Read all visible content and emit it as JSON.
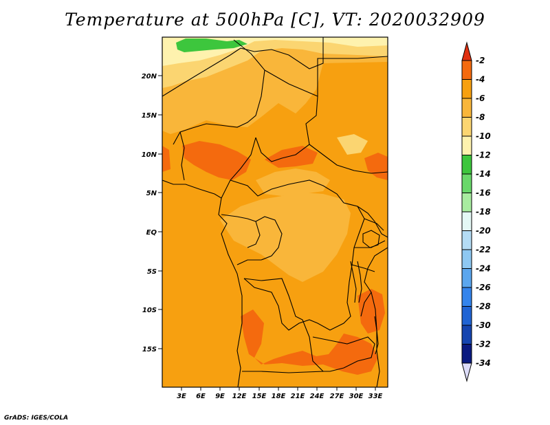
{
  "title": "Temperature at 500hPa [C], VT: 2020032909",
  "credit": "GrADS: IGES/COLA",
  "lat_ticks": [
    "20N",
    "15N",
    "10N",
    "5N",
    "EQ",
    "5S",
    "10S",
    "15S"
  ],
  "lon_ticks": [
    "3E",
    "6E",
    "9E",
    "12E",
    "15E",
    "18E",
    "21E",
    "24E",
    "27E",
    "30E",
    "33E"
  ],
  "colorbar": {
    "labels": [
      "-2",
      "-4",
      "-6",
      "-8",
      "-10",
      "-12",
      "-14",
      "-16",
      "-18",
      "-20",
      "-22",
      "-24",
      "-26",
      "-28",
      "-30",
      "-32",
      "-34"
    ],
    "colors": [
      "#e8401a",
      "#f46a0e",
      "#f7a010",
      "#f9b63a",
      "#fbd571",
      "#fef2ae",
      "#3dc63d",
      "#69d86a",
      "#a8eca0",
      "#e4f8f5",
      "#b4dcf5",
      "#8ec8f2",
      "#5ba6ee",
      "#3484ec",
      "#2064d4",
      "#1545b0",
      "#0a1a80"
    ],
    "top_arrow_color": "#e03010",
    "bottom_arrow_color": "#dcdcf8"
  },
  "map_colors": {
    "base": "#f7a010",
    "warm": "#f46a0e",
    "cool": "#f9b63a",
    "cooler": "#fbd571",
    "coolest": "#fef2ae",
    "green": "#3dc63d"
  }
}
